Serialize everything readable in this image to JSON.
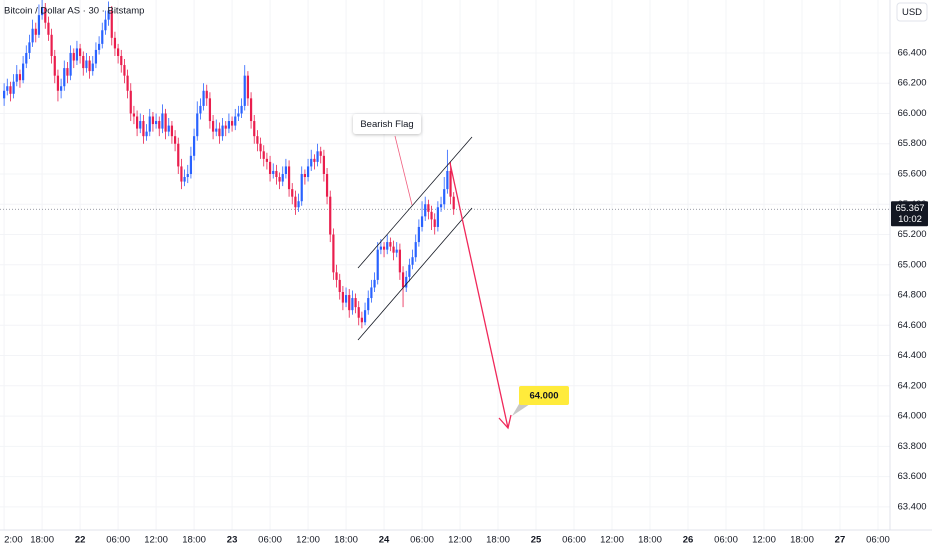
{
  "chart_data": {
    "type": "candlestick",
    "title": "Bitcoin / Dollar AS · 30 · Bitstamp",
    "currency": "USD",
    "up_color": "#2962ff",
    "down_color": "#e91e4d",
    "ylim": [
      63247,
      66750
    ],
    "xlim": [
      -1.3,
      279.8
    ],
    "yticks": [
      {
        "value": 63400,
        "label": "63.400"
      },
      {
        "value": 63600,
        "label": "63.600"
      },
      {
        "value": 63800,
        "label": "63.800"
      },
      {
        "value": 64000,
        "label": "64.000"
      },
      {
        "value": 64200,
        "label": "64.200"
      },
      {
        "value": 64400,
        "label": "64.400"
      },
      {
        "value": 64600,
        "label": "64.600"
      },
      {
        "value": 64800,
        "label": "64.800"
      },
      {
        "value": 65000,
        "label": "65.000"
      },
      {
        "value": 65200,
        "label": "65.200"
      },
      {
        "value": 65400,
        "label": "65.400"
      },
      {
        "value": 65600,
        "label": "65.600"
      },
      {
        "value": 65800,
        "label": "65.800"
      },
      {
        "value": 66000,
        "label": "66.000"
      },
      {
        "value": 66200,
        "label": "66.200"
      },
      {
        "value": 66400,
        "label": "66.400"
      }
    ],
    "xticks": [
      {
        "value": 0,
        "label": "2:00"
      },
      {
        "value": 12,
        "label": "18:00"
      },
      {
        "value": 24,
        "label": "22"
      },
      {
        "value": 36,
        "label": "06:00"
      },
      {
        "value": 48,
        "label": "12:00"
      },
      {
        "value": 60,
        "label": "18:00"
      },
      {
        "value": 72,
        "label": "23"
      },
      {
        "value": 84,
        "label": "06:00"
      },
      {
        "value": 96,
        "label": "12:00"
      },
      {
        "value": 108,
        "label": "18:00"
      },
      {
        "value": 120,
        "label": "24"
      },
      {
        "value": 132,
        "label": "06:00"
      },
      {
        "value": 144,
        "label": "12:00"
      },
      {
        "value": 156,
        "label": "18:00"
      },
      {
        "value": 168,
        "label": "25"
      },
      {
        "value": 180,
        "label": "06:00"
      },
      {
        "value": 192,
        "label": "12:00"
      },
      {
        "value": 204,
        "label": "18:00"
      },
      {
        "value": 216,
        "label": "26"
      },
      {
        "value": 228,
        "label": "06:00"
      },
      {
        "value": 240,
        "label": "12:00"
      },
      {
        "value": 252,
        "label": "18:00"
      },
      {
        "value": 264,
        "label": "27"
      },
      {
        "value": 276,
        "label": "06:00"
      }
    ],
    "last_price": {
      "value": 65367,
      "label": "65.367"
    },
    "countdown": "10:02",
    "annotations": {
      "pattern": "Bearish Flag",
      "target": {
        "value": 64000,
        "label": "64.000"
      }
    },
    "candles": [
      [
        66100,
        66200,
        66050,
        66150
      ],
      [
        66150,
        66230,
        66120,
        66180
      ],
      [
        66180,
        66210,
        66080,
        66130
      ],
      [
        66130,
        66260,
        66100,
        66210
      ],
      [
        66210,
        66320,
        66180,
        66260
      ],
      [
        66260,
        66290,
        66170,
        66220
      ],
      [
        66220,
        66380,
        66200,
        66330
      ],
      [
        66330,
        66450,
        66300,
        66400
      ],
      [
        66400,
        66520,
        66360,
        66470
      ],
      [
        66470,
        66620,
        66440,
        66560
      ],
      [
        66560,
        66600,
        66470,
        66520
      ],
      [
        66520,
        66720,
        66500,
        66650
      ],
      [
        66650,
        66760,
        66620,
        66700
      ],
      [
        66700,
        66730,
        66560,
        66600
      ],
      [
        66600,
        66640,
        66480,
        66520
      ],
      [
        66520,
        66560,
        66330,
        66380
      ],
      [
        66380,
        66420,
        66200,
        66250
      ],
      [
        66250,
        66290,
        66080,
        66150
      ],
      [
        66150,
        66230,
        66100,
        66180
      ],
      [
        66180,
        66350,
        66150,
        66300
      ],
      [
        66300,
        66340,
        66200,
        66250
      ],
      [
        66250,
        66450,
        66220,
        66400
      ],
      [
        66400,
        66430,
        66300,
        66350
      ],
      [
        66350,
        66480,
        66320,
        66430
      ],
      [
        66430,
        66460,
        66330,
        66380
      ],
      [
        66380,
        66410,
        66250,
        66300
      ],
      [
        66300,
        66400,
        66270,
        66350
      ],
      [
        66350,
        66380,
        66230,
        66280
      ],
      [
        66280,
        66380,
        66250,
        66330
      ],
      [
        66330,
        66470,
        66300,
        66420
      ],
      [
        66420,
        66510,
        66390,
        66460
      ],
      [
        66460,
        66600,
        66430,
        66550
      ],
      [
        66550,
        66680,
        66520,
        66620
      ],
      [
        66620,
        66740,
        66580,
        66680
      ],
      [
        66680,
        66710,
        66450,
        66500
      ],
      [
        66500,
        66540,
        66380,
        66430
      ],
      [
        66430,
        66460,
        66330,
        66380
      ],
      [
        66380,
        66420,
        66270,
        66320
      ],
      [
        66320,
        66360,
        66200,
        66250
      ],
      [
        66250,
        66290,
        66100,
        66150
      ],
      [
        66150,
        66200,
        65950,
        66000
      ],
      [
        66000,
        66050,
        65930,
        65980
      ],
      [
        65980,
        66020,
        65850,
        65900
      ],
      [
        65900,
        66000,
        65870,
        65950
      ],
      [
        65950,
        65990,
        65800,
        65850
      ],
      [
        65850,
        65930,
        65820,
        65880
      ],
      [
        65880,
        66030,
        65850,
        65980
      ],
      [
        65980,
        66010,
        65880,
        65930
      ],
      [
        65930,
        66000,
        65900,
        65950
      ],
      [
        65950,
        65980,
        65850,
        65900
      ],
      [
        65900,
        66060,
        65870,
        66000
      ],
      [
        66000,
        66030,
        65830,
        65880
      ],
      [
        65880,
        65970,
        65850,
        65920
      ],
      [
        65920,
        65950,
        65800,
        65850
      ],
      [
        65850,
        65890,
        65750,
        65800
      ],
      [
        65800,
        65840,
        65600,
        65650
      ],
      [
        65650,
        65700,
        65500,
        65550
      ],
      [
        65550,
        65630,
        65520,
        65580
      ],
      [
        65580,
        65660,
        65540,
        65600
      ],
      [
        65600,
        65780,
        65570,
        65720
      ],
      [
        65720,
        65900,
        65690,
        65850
      ],
      [
        65850,
        66080,
        65820,
        66000
      ],
      [
        66000,
        66100,
        65960,
        66050
      ],
      [
        66050,
        66200,
        66020,
        66150
      ],
      [
        66150,
        66190,
        66050,
        66100
      ],
      [
        66100,
        66140,
        65900,
        65950
      ],
      [
        65950,
        65990,
        65830,
        65880
      ],
      [
        65880,
        65960,
        65850,
        65900
      ],
      [
        65900,
        65940,
        65800,
        65850
      ],
      [
        65850,
        65970,
        65820,
        65920
      ],
      [
        65920,
        65950,
        65850,
        65900
      ],
      [
        65900,
        66000,
        65870,
        65950
      ],
      [
        65950,
        65980,
        65880,
        65920
      ],
      [
        65920,
        66030,
        65890,
        65980
      ],
      [
        65980,
        66050,
        65950,
        66000
      ],
      [
        66000,
        66100,
        65970,
        66050
      ],
      [
        66050,
        66320,
        66020,
        66250
      ],
      [
        66250,
        66280,
        66050,
        66100
      ],
      [
        66100,
        66140,
        65900,
        65950
      ],
      [
        65950,
        65990,
        65800,
        65850
      ],
      [
        65850,
        65890,
        65750,
        65800
      ],
      [
        65800,
        65840,
        65700,
        65750
      ],
      [
        65750,
        65790,
        65650,
        65700
      ],
      [
        65700,
        65740,
        65630,
        65680
      ],
      [
        65680,
        65720,
        65550,
        65600
      ],
      [
        65600,
        65670,
        65570,
        65620
      ],
      [
        65620,
        65660,
        65530,
        65580
      ],
      [
        65580,
        65610,
        65500,
        65550
      ],
      [
        65550,
        65650,
        65520,
        65600
      ],
      [
        65600,
        65700,
        65570,
        65650
      ],
      [
        65650,
        65690,
        65450,
        65500
      ],
      [
        65500,
        65540,
        65400,
        65450
      ],
      [
        65450,
        65490,
        65330,
        65380
      ],
      [
        65380,
        65470,
        65350,
        65420
      ],
      [
        65420,
        65650,
        65390,
        65600
      ],
      [
        65600,
        65630,
        65530,
        65580
      ],
      [
        65580,
        65700,
        65550,
        65650
      ],
      [
        65650,
        65760,
        65620,
        65700
      ],
      [
        65700,
        65730,
        65630,
        65680
      ],
      [
        65680,
        65800,
        65650,
        65750
      ],
      [
        65750,
        65780,
        65670,
        65720
      ],
      [
        65720,
        65760,
        65550,
        65600
      ],
      [
        65600,
        65640,
        65400,
        65450
      ],
      [
        65450,
        65490,
        65150,
        65200
      ],
      [
        65200,
        65240,
        64900,
        64950
      ],
      [
        64950,
        65000,
        64850,
        64900
      ],
      [
        64900,
        64940,
        64770,
        64820
      ],
      [
        64820,
        64860,
        64700,
        64750
      ],
      [
        64750,
        64850,
        64720,
        64800
      ],
      [
        64800,
        64840,
        64650,
        64700
      ],
      [
        64700,
        64830,
        64670,
        64780
      ],
      [
        64780,
        64810,
        64680,
        64720
      ],
      [
        64720,
        64760,
        64600,
        64650
      ],
      [
        64650,
        64690,
        64580,
        64620
      ],
      [
        64620,
        64750,
        64600,
        64700
      ],
      [
        64700,
        64830,
        64670,
        64780
      ],
      [
        64780,
        64900,
        64750,
        64850
      ],
      [
        64850,
        64950,
        64820,
        64900
      ],
      [
        64900,
        65150,
        64870,
        65100
      ],
      [
        65100,
        65170,
        65070,
        65120
      ],
      [
        65120,
        65150,
        65050,
        65100
      ],
      [
        65100,
        65200,
        65070,
        65150
      ],
      [
        65150,
        65180,
        65090,
        65120
      ],
      [
        65120,
        65160,
        65030,
        65080
      ],
      [
        65080,
        65150,
        65050,
        65100
      ],
      [
        65100,
        65140,
        64900,
        64950
      ],
      [
        64950,
        64990,
        64720,
        64850
      ],
      [
        64850,
        64960,
        64820,
        64920
      ],
      [
        64920,
        65040,
        64890,
        65000
      ],
      [
        65000,
        65100,
        64970,
        65050
      ],
      [
        65050,
        65200,
        65020,
        65150
      ],
      [
        65150,
        65300,
        65120,
        65250
      ],
      [
        65250,
        65420,
        65220,
        65320
      ],
      [
        65320,
        65450,
        65290,
        65400
      ],
      [
        65400,
        65430,
        65300,
        65350
      ],
      [
        65350,
        65390,
        65230,
        65300
      ],
      [
        65300,
        65340,
        65200,
        65250
      ],
      [
        65250,
        65420,
        65220,
        65380
      ],
      [
        65380,
        65450,
        65350,
        65400
      ],
      [
        65400,
        65580,
        65370,
        65500
      ],
      [
        65500,
        65760,
        65470,
        65620
      ],
      [
        65620,
        65680,
        65400,
        65450
      ],
      [
        65450,
        65480,
        65330,
        65367
      ]
    ]
  }
}
